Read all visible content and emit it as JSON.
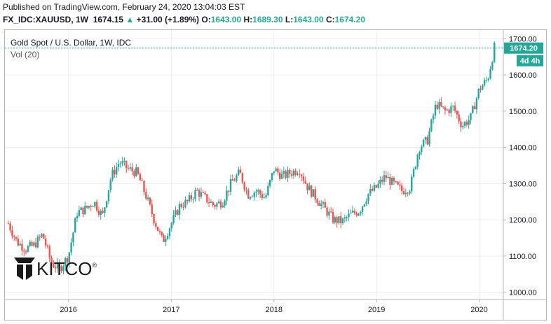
{
  "header": {
    "published": "Published on TradingView.com, February 24, 2020 13:04:03 EST",
    "symbol": "FX_IDC:XAUUSD, 1W",
    "last": "1674.15",
    "change_arrow": "▲",
    "change": "+31.00 (+1.89%)",
    "open_label": "O:",
    "open": "1643.00",
    "high_label": "H:",
    "high": "1689.30",
    "low_label": "L:",
    "low": "1643.00",
    "close_label": "C:",
    "close": "1674.20"
  },
  "legend": {
    "title": "Gold Spot / U.S. Dollar, 1W, IDC",
    "vol": "Vol (20)"
  },
  "price_tag": "1674.20",
  "countdown_tag": "4d 4h",
  "logo": {
    "text": "KITCO",
    "reg": "®"
  },
  "colors": {
    "up": "#26a69a",
    "down": "#ef5350",
    "last_line": "#26a69a",
    "grid": "#eceef2"
  },
  "chart_data": {
    "type": "line",
    "title": "Gold Spot / U.S. Dollar, 1W, IDC",
    "series": [
      {
        "name": "",
        "x": [
          "2015-06-01",
          "2015-07-01",
          "2015-08-01",
          "2015-09-01",
          "2015-10-01",
          "2015-11-01",
          "2015-12-01",
          "2016-01-01",
          "2016-02-01",
          "2016-03-01",
          "2016-04-01",
          "2016-05-01",
          "2016-06-01",
          "2016-07-01",
          "2016-08-01",
          "2016-09-01",
          "2016-10-01",
          "2016-11-01",
          "2016-12-01",
          "2017-01-01",
          "2017-02-01",
          "2017-03-01",
          "2017-04-01",
          "2017-05-01",
          "2017-06-01",
          "2017-07-01",
          "2017-08-01",
          "2017-09-01",
          "2017-10-01",
          "2017-11-01",
          "2017-12-01",
          "2018-01-01",
          "2018-02-01",
          "2018-03-01",
          "2018-04-01",
          "2018-05-01",
          "2018-06-01",
          "2018-07-01",
          "2018-08-01",
          "2018-09-01",
          "2018-10-01",
          "2018-11-01",
          "2018-12-01",
          "2019-01-01",
          "2019-02-01",
          "2019-03-01",
          "2019-04-01",
          "2019-05-01",
          "2019-06-01",
          "2019-07-01",
          "2019-08-01",
          "2019-09-01",
          "2019-10-01",
          "2019-11-01",
          "2019-12-01",
          "2020-01-01",
          "2020-02-01",
          "2020-02-24"
        ],
        "values": [
          1190,
          1140,
          1120,
          1130,
          1160,
          1080,
          1065,
          1100,
          1220,
          1230,
          1250,
          1210,
          1320,
          1360,
          1340,
          1330,
          1270,
          1200,
          1140,
          1190,
          1240,
          1250,
          1280,
          1260,
          1240,
          1250,
          1300,
          1330,
          1270,
          1280,
          1260,
          1340,
          1320,
          1330,
          1340,
          1290,
          1260,
          1230,
          1200,
          1195,
          1215,
          1225,
          1270,
          1290,
          1320,
          1300,
          1280,
          1290,
          1400,
          1420,
          1520,
          1500,
          1510,
          1460,
          1480,
          1560,
          1590,
          1674.2
        ]
      }
    ],
    "yticks": [
      "1000.00",
      "1100.00",
      "1200.00",
      "1300.00",
      "1400.00",
      "1500.00",
      "1600.00",
      "1700.00"
    ],
    "xticks": [
      "2016",
      "2017",
      "2018",
      "2019",
      "2020"
    ],
    "ylim": [
      980,
      1720
    ],
    "last_price": 1674.2
  }
}
